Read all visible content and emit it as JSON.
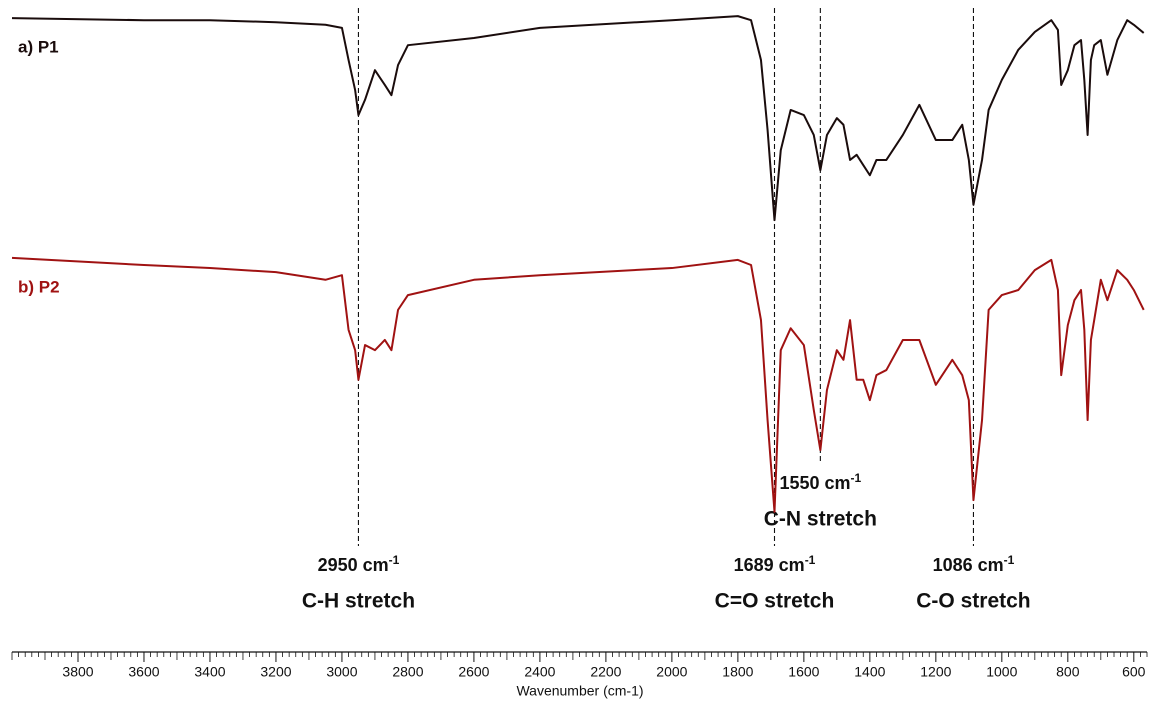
{
  "chart_data": {
    "type": "line",
    "x_label": "Wavenumber (cm-1)",
    "xlim": [
      4000,
      560
    ],
    "xticks": [
      3800,
      3600,
      3400,
      3200,
      3000,
      2800,
      2600,
      2400,
      2200,
      2000,
      1800,
      1600,
      1400,
      1200,
      1000,
      800,
      600
    ],
    "ylim": [
      0,
      100
    ],
    "x": [
      4000,
      3600,
      3400,
      3200,
      3050,
      3000,
      2980,
      2960,
      2950,
      2930,
      2900,
      2870,
      2850,
      2830,
      2800,
      2600,
      2400,
      2000,
      1800,
      1760,
      1730,
      1710,
      1689,
      1670,
      1640,
      1600,
      1570,
      1550,
      1530,
      1500,
      1480,
      1460,
      1440,
      1420,
      1400,
      1380,
      1350,
      1300,
      1250,
      1200,
      1150,
      1120,
      1100,
      1086,
      1060,
      1040,
      1000,
      950,
      900,
      850,
      830,
      820,
      800,
      780,
      760,
      750,
      740,
      730,
      720,
      700,
      680,
      650,
      620,
      600,
      570
    ],
    "series": [
      {
        "name": "a) P1",
        "color": "#1a0c0c",
        "values": [
          98.4,
          98.0,
          98.0,
          97.6,
          97.1,
          96.5,
          90.2,
          84.3,
          79.4,
          82.4,
          88.2,
          85.3,
          83.3,
          89.2,
          93.1,
          94.5,
          96.5,
          98.0,
          98.8,
          98.0,
          90.2,
          76.5,
          58.8,
          72.5,
          80.4,
          79.4,
          75.5,
          68.6,
          75.5,
          78.8,
          77.5,
          70.6,
          71.6,
          69.6,
          67.6,
          70.6,
          70.6,
          75.5,
          81.4,
          74.5,
          74.5,
          77.5,
          70.6,
          61.8,
          70.6,
          80.4,
          86.3,
          92.2,
          95.7,
          98.0,
          96.1,
          85.3,
          88.2,
          93.1,
          94.1,
          86.3,
          75.5,
          90.2,
          93.1,
          94.1,
          87.3,
          94.1,
          98.0,
          97.1,
          95.5
        ]
      },
      {
        "name": "b) P2",
        "color": "#a01212",
        "values": [
          51.4,
          50.0,
          49.4,
          48.6,
          47.1,
          48.0,
          37.3,
          33.3,
          27.5,
          34.3,
          33.3,
          35.3,
          33.3,
          41.2,
          44.1,
          47.1,
          48.0,
          49.4,
          51.0,
          50.0,
          39.2,
          19.6,
          1.6,
          33.3,
          37.6,
          34.3,
          21.6,
          13.7,
          25.5,
          33.3,
          31.4,
          39.2,
          27.5,
          27.5,
          23.5,
          28.4,
          29.4,
          35.3,
          35.3,
          26.5,
          31.4,
          28.4,
          23.5,
          3.9,
          19.6,
          41.2,
          44.1,
          45.1,
          49.0,
          51.0,
          45.1,
          28.4,
          38.2,
          43.1,
          45.1,
          37.3,
          19.6,
          35.3,
          39.2,
          47.1,
          43.1,
          49.0,
          47.1,
          45.1,
          41.2
        ]
      }
    ],
    "annotations": [
      {
        "x": 2950,
        "unit": "cm",
        "unit_sup": "-1",
        "label": "C-H stretch"
      },
      {
        "x": 1689,
        "unit": "cm",
        "unit_sup": "-1",
        "label": "C=O stretch"
      },
      {
        "x": 1550,
        "unit": "cm",
        "unit_sup": "-1",
        "label": "C-N stretch"
      },
      {
        "x": 1086,
        "unit": "cm",
        "unit_sup": "-1",
        "label": "C-O stretch"
      }
    ]
  }
}
